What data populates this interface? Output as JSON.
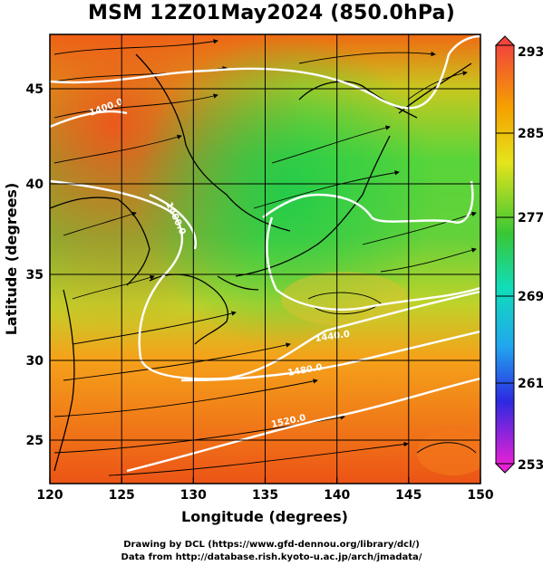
{
  "title": "MSM 12Z01May2024 (850.0hPa)",
  "axes": {
    "x_label": "Longitude (degrees)",
    "y_label": "Latitude  (degrees)",
    "x_ticks": [
      "120",
      "125",
      "130",
      "135",
      "140",
      "145",
      "150"
    ],
    "y_ticks": [
      "45",
      "40",
      "35",
      "30",
      "25"
    ]
  },
  "colorbar": {
    "labels": [
      "293",
      "285",
      "277",
      "269",
      "261",
      "253"
    ],
    "min": 253,
    "max": 293
  },
  "contours": {
    "labels": [
      "1400.0",
      "1400.0",
      "1440.0",
      "1480.0",
      "1520.0"
    ],
    "color": "#ffffff"
  },
  "footer": {
    "line1": "Drawing by DCL (https://www.gfd-dennou.org/library/dcl/)",
    "line2": "Data from http://database.rish.kyoto-u.ac.jp/arch/jmadata/"
  }
}
